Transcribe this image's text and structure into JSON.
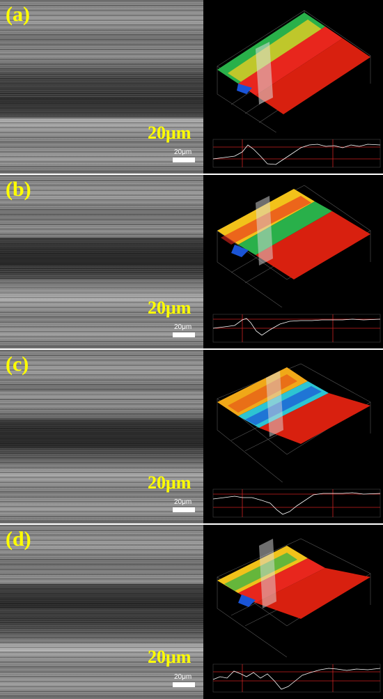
{
  "panels": [
    {
      "label": "(a)",
      "scale_label": "20μm",
      "scale_small": "20μm"
    },
    {
      "label": "(b)",
      "scale_label": "20μm",
      "scale_small": "20μm"
    },
    {
      "label": "(c)",
      "scale_label": "20μm",
      "scale_small": "20μm"
    },
    {
      "label": "(d)",
      "scale_label": "20μm",
      "scale_small": "20μm"
    }
  ],
  "colors": {
    "label": "#ffff00",
    "scale_text": "#ffff00",
    "profile_marker": "#cc2222",
    "profile_line": "#ffffff",
    "background_right": "#000000"
  }
}
